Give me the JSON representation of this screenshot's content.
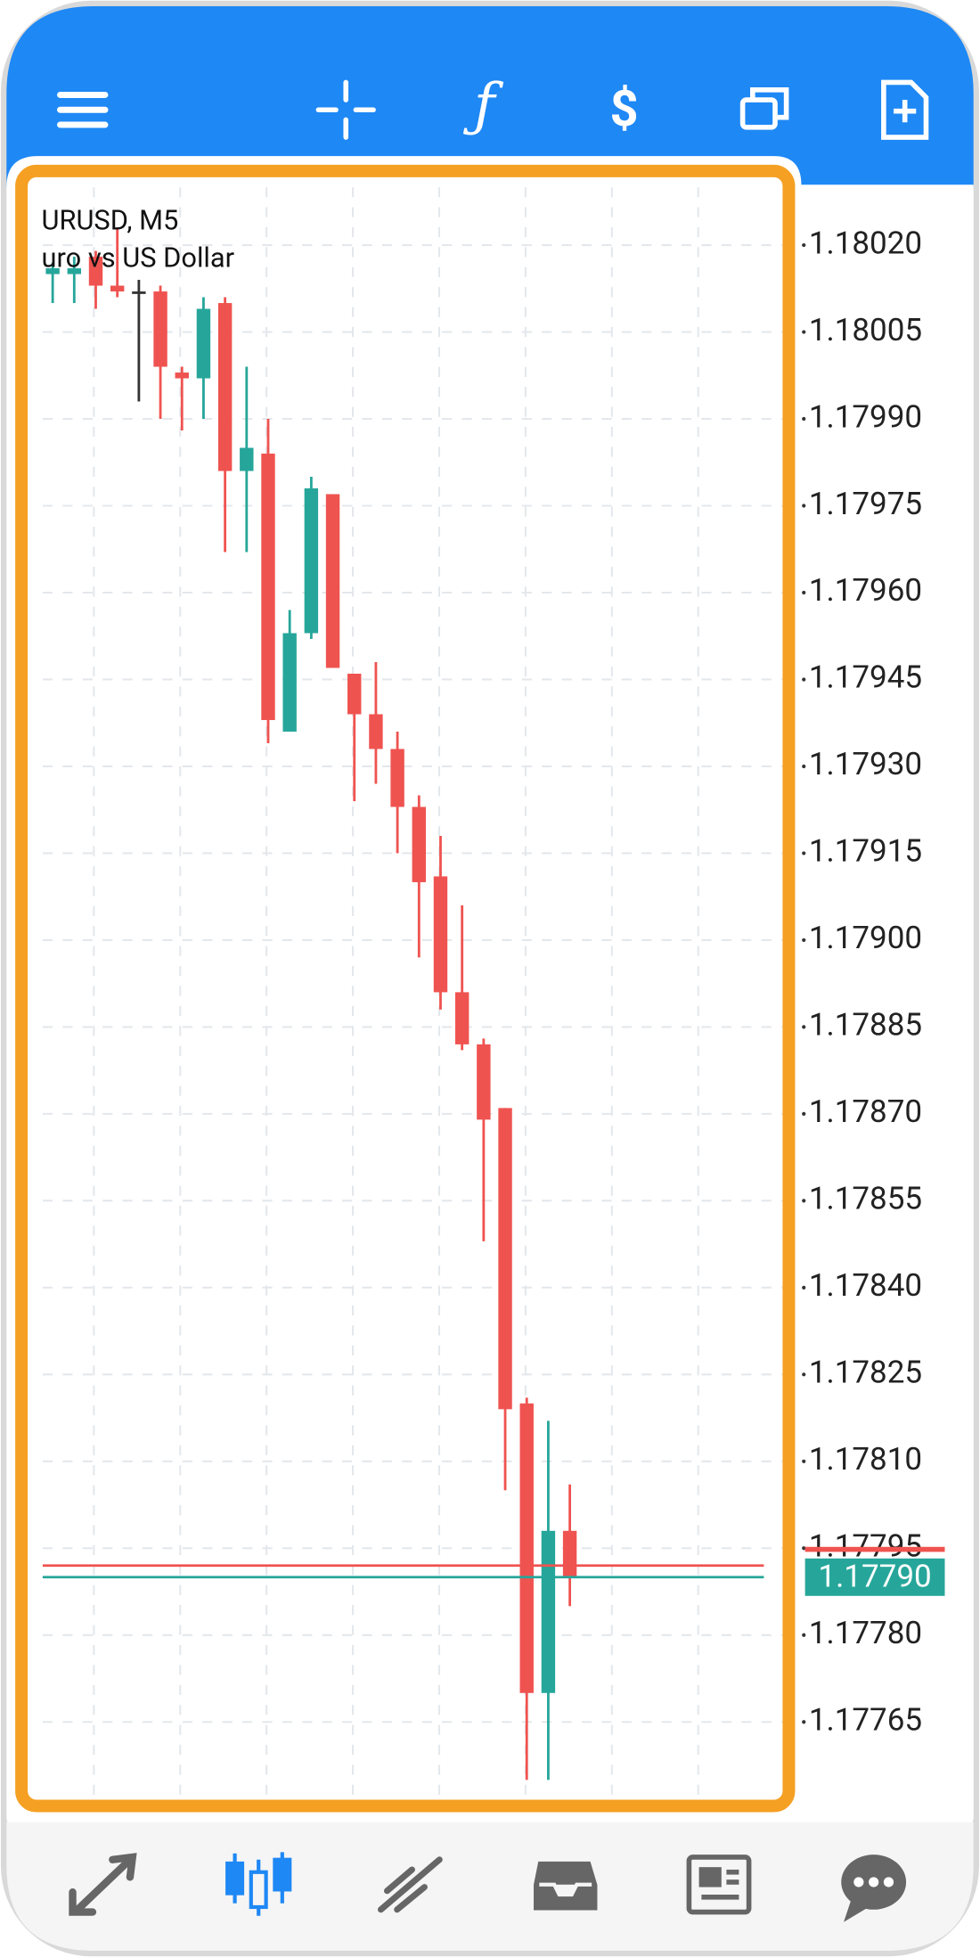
{
  "chart_data": {
    "type": "candlestick",
    "title": "URUSD, M5",
    "subtitle": "uro vs US Dollar",
    "open": [
      1.18015,
      1.18015,
      1.18018,
      1.18013,
      1.18012,
      1.18012,
      1.17998,
      1.17997,
      1.1801,
      1.17981,
      1.17984,
      1.17936,
      1.17953,
      1.17977,
      1.17946,
      1.17939,
      1.17933,
      1.17923,
      1.17911,
      1.17891,
      1.17882,
      1.17871,
      1.1782,
      1.1777,
      1.17798
    ],
    "high": [
      1.18017,
      1.18018,
      1.18019,
      1.18023,
      1.18014,
      1.18013,
      1.17999,
      1.18011,
      1.18011,
      1.17999,
      1.1799,
      1.17957,
      1.1798,
      1.17977,
      1.17946,
      1.17948,
      1.17936,
      1.17925,
      1.17918,
      1.17906,
      1.17883,
      1.17871,
      1.17821,
      1.17817,
      1.17806
    ],
    "low": [
      1.1801,
      1.1801,
      1.18009,
      1.18011,
      1.17993,
      1.1799,
      1.17988,
      1.1799,
      1.17967,
      1.17967,
      1.17934,
      1.17936,
      1.17952,
      1.17947,
      1.17924,
      1.17927,
      1.17915,
      1.17897,
      1.17888,
      1.17881,
      1.17848,
      1.17805,
      1.17755,
      1.17755,
      1.17785
    ],
    "close": [
      1.18016,
      1.18016,
      1.18013,
      1.18012,
      1.18012,
      1.17999,
      1.17997,
      1.18009,
      1.17981,
      1.17985,
      1.17938,
      1.17953,
      1.17978,
      1.17947,
      1.17939,
      1.17933,
      1.17923,
      1.1791,
      1.17891,
      1.17882,
      1.17869,
      1.17819,
      1.1777,
      1.17798,
      1.1779
    ],
    "up_color": "#26a69a",
    "down_color": "#ef5350",
    "doji_color": "#333333",
    "ylim": [
      1.17752,
      1.1803
    ],
    "yticks": [
      {
        "value": 1.1802,
        "label": "1.18020"
      },
      {
        "value": 1.18005,
        "label": "1.18005"
      },
      {
        "value": 1.1799,
        "label": "1.17990"
      },
      {
        "value": 1.17975,
        "label": "1.17975"
      },
      {
        "value": 1.1796,
        "label": "1.17960"
      },
      {
        "value": 1.17945,
        "label": "1.17945"
      },
      {
        "value": 1.1793,
        "label": "1.17930"
      },
      {
        "value": 1.17915,
        "label": "1.17915"
      },
      {
        "value": 1.179,
        "label": "1.17900"
      },
      {
        "value": 1.17885,
        "label": "1.17885"
      },
      {
        "value": 1.1787,
        "label": "1.17870"
      },
      {
        "value": 1.17855,
        "label": "1.17855"
      },
      {
        "value": 1.1784,
        "label": "1.17840"
      },
      {
        "value": 1.17825,
        "label": "1.17825"
      },
      {
        "value": 1.1781,
        "label": "1.17810"
      },
      {
        "value": 1.17795,
        "label": "1.17795"
      },
      {
        "value": 1.1778,
        "label": "1.17780"
      },
      {
        "value": 1.17765,
        "label": "1.17765"
      }
    ],
    "grid": true,
    "price_lines": [
      {
        "value": 1.17792,
        "color": "#ef5350"
      },
      {
        "value": 1.1779,
        "color": "#26a69a",
        "label": "1.17790"
      }
    ]
  }
}
